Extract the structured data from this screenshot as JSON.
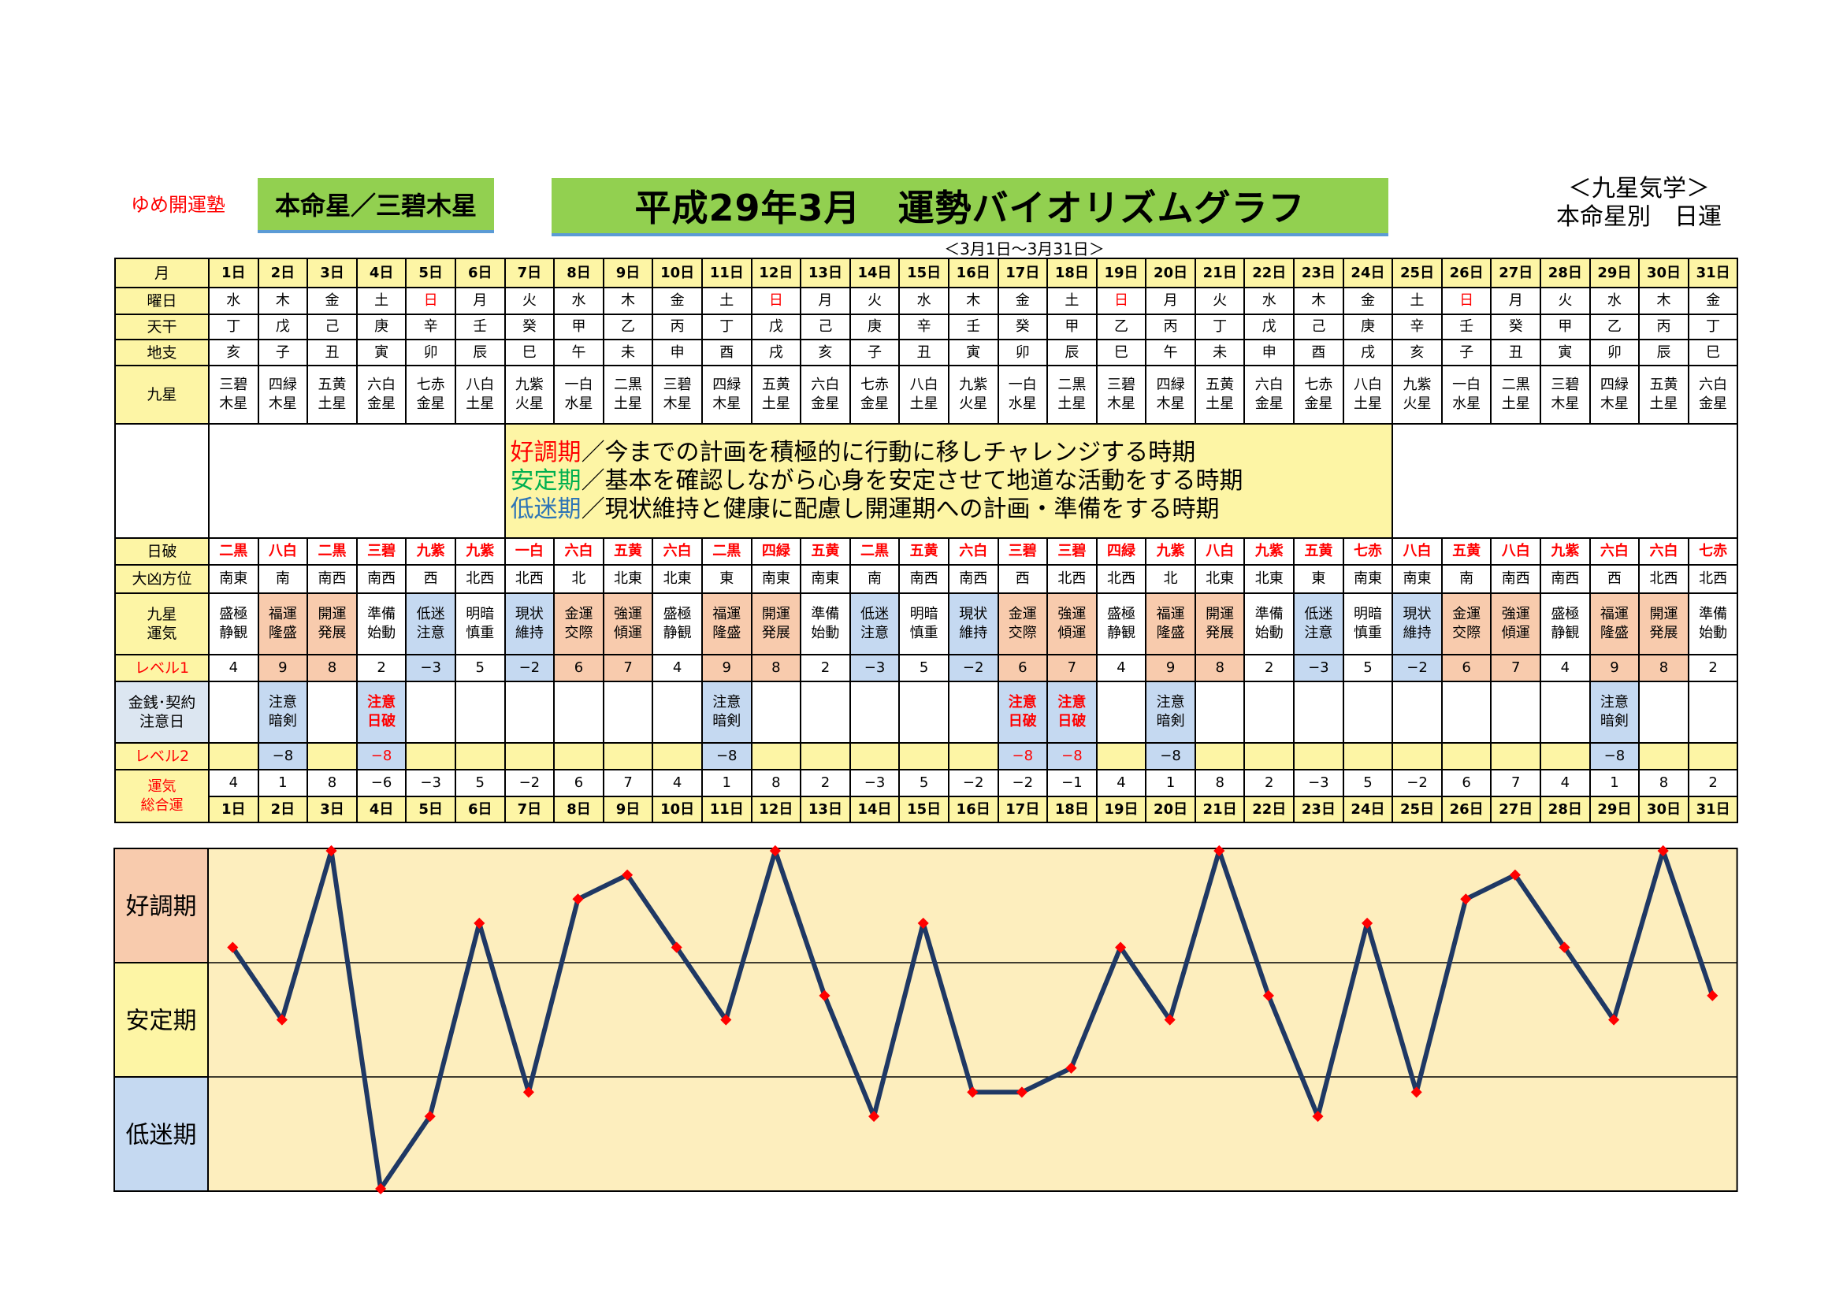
{
  "header": {
    "brand": "ゆめ開運塾",
    "honmei": "本命星／三碧木星",
    "title": "平成29年3月　運勢バイオリズムグラフ",
    "kyusei_line1": "＜九星気学＞",
    "kyusei_line2": "本命星別　日運",
    "subtitle": "＜3月1日～3月31日＞"
  },
  "row_labels": {
    "month": "月",
    "weekday": "曜日",
    "tenkan": "天干",
    "chishi": "地支",
    "kyusei": "九星",
    "nippa": "日破",
    "daikyo": "大凶方位",
    "unki_a": "九星",
    "unki_b": "運気",
    "level1": "レベル1",
    "kinsen_a": "金銭･契約",
    "kinsen_b": "注意日",
    "level2": "レベル2",
    "total_a": "運気",
    "total_b": "総合運"
  },
  "legend": {
    "good_label": "好調期",
    "good_text": "／今までの計画を積極的に行動に移しチャレンジする時期",
    "stable_label": "安定期",
    "stable_text": "／基本を確認しながら心身を安定させて地道な活動をする時期",
    "low_label": "低迷期",
    "low_text": "／現状維持と健康に配慮し開運期への計画・準備をする時期"
  },
  "days": [
    {
      "d": "1日",
      "w": "水",
      "t": "丁",
      "c": "亥",
      "k1": "三碧",
      "k2": "木星",
      "np": "二黒",
      "dk": "南東",
      "u1": "盛極",
      "u2": "静観",
      "l1": "4",
      "n1": "",
      "n2": "",
      "l2": "",
      "tot": "4"
    },
    {
      "d": "2日",
      "w": "木",
      "t": "戊",
      "c": "子",
      "k1": "四緑",
      "k2": "木星",
      "np": "八白",
      "dk": "南",
      "u1": "福運",
      "u2": "隆盛",
      "l1": "9",
      "n1": "注意",
      "n2": "暗剣",
      "l2": "−8",
      "tot": "1"
    },
    {
      "d": "3日",
      "w": "金",
      "t": "己",
      "c": "丑",
      "k1": "五黄",
      "k2": "土星",
      "np": "二黒",
      "dk": "南西",
      "u1": "開運",
      "u2": "発展",
      "l1": "8",
      "n1": "",
      "n2": "",
      "l2": "",
      "tot": "8"
    },
    {
      "d": "4日",
      "w": "土",
      "t": "庚",
      "c": "寅",
      "k1": "六白",
      "k2": "金星",
      "np": "三碧",
      "dk": "南西",
      "u1": "準備",
      "u2": "始動",
      "l1": "2",
      "n1": "注意",
      "n2": "日破",
      "l2": "−8",
      "tot": "−6"
    },
    {
      "d": "5日",
      "w": "日",
      "t": "辛",
      "c": "卯",
      "k1": "七赤",
      "k2": "金星",
      "np": "九紫",
      "dk": "西",
      "u1": "低迷",
      "u2": "注意",
      "l1": "−3",
      "n1": "",
      "n2": "",
      "l2": "",
      "tot": "−3"
    },
    {
      "d": "6日",
      "w": "月",
      "t": "壬",
      "c": "辰",
      "k1": "八白",
      "k2": "土星",
      "np": "九紫",
      "dk": "北西",
      "u1": "明暗",
      "u2": "慎重",
      "l1": "5",
      "n1": "",
      "n2": "",
      "l2": "",
      "tot": "5"
    },
    {
      "d": "7日",
      "w": "火",
      "t": "癸",
      "c": "巳",
      "k1": "九紫",
      "k2": "火星",
      "np": "一白",
      "dk": "北西",
      "u1": "現状",
      "u2": "維持",
      "l1": "−2",
      "n1": "",
      "n2": "",
      "l2": "",
      "tot": "−2"
    },
    {
      "d": "8日",
      "w": "水",
      "t": "甲",
      "c": "午",
      "k1": "一白",
      "k2": "水星",
      "np": "六白",
      "dk": "北",
      "u1": "金運",
      "u2": "交際",
      "l1": "6",
      "n1": "",
      "n2": "",
      "l2": "",
      "tot": "6"
    },
    {
      "d": "9日",
      "w": "木",
      "t": "乙",
      "c": "未",
      "k1": "二黒",
      "k2": "土星",
      "np": "五黄",
      "dk": "北東",
      "u1": "強運",
      "u2": "傾運",
      "l1": "7",
      "n1": "",
      "n2": "",
      "l2": "",
      "tot": "7"
    },
    {
      "d": "10日",
      "w": "金",
      "t": "丙",
      "c": "申",
      "k1": "三碧",
      "k2": "木星",
      "np": "六白",
      "dk": "北東",
      "u1": "盛極",
      "u2": "静観",
      "l1": "4",
      "n1": "",
      "n2": "",
      "l2": "",
      "tot": "4"
    },
    {
      "d": "11日",
      "w": "土",
      "t": "丁",
      "c": "酉",
      "k1": "四緑",
      "k2": "木星",
      "np": "二黒",
      "dk": "東",
      "u1": "福運",
      "u2": "隆盛",
      "l1": "9",
      "n1": "注意",
      "n2": "暗剣",
      "l2": "−8",
      "tot": "1"
    },
    {
      "d": "12日",
      "w": "日",
      "t": "戊",
      "c": "戌",
      "k1": "五黄",
      "k2": "土星",
      "np": "四緑",
      "dk": "南東",
      "u1": "開運",
      "u2": "発展",
      "l1": "8",
      "n1": "",
      "n2": "",
      "l2": "",
      "tot": "8"
    },
    {
      "d": "13日",
      "w": "月",
      "t": "己",
      "c": "亥",
      "k1": "六白",
      "k2": "金星",
      "np": "五黄",
      "dk": "南東",
      "u1": "準備",
      "u2": "始動",
      "l1": "2",
      "n1": "",
      "n2": "",
      "l2": "",
      "tot": "2"
    },
    {
      "d": "14日",
      "w": "火",
      "t": "庚",
      "c": "子",
      "k1": "七赤",
      "k2": "金星",
      "np": "二黒",
      "dk": "南",
      "u1": "低迷",
      "u2": "注意",
      "l1": "−3",
      "n1": "",
      "n2": "",
      "l2": "",
      "tot": "−3"
    },
    {
      "d": "15日",
      "w": "水",
      "t": "辛",
      "c": "丑",
      "k1": "八白",
      "k2": "土星",
      "np": "五黄",
      "dk": "南西",
      "u1": "明暗",
      "u2": "慎重",
      "l1": "5",
      "n1": "",
      "n2": "",
      "l2": "",
      "tot": "5"
    },
    {
      "d": "16日",
      "w": "木",
      "t": "壬",
      "c": "寅",
      "k1": "九紫",
      "k2": "火星",
      "np": "六白",
      "dk": "南西",
      "u1": "現状",
      "u2": "維持",
      "l1": "−2",
      "n1": "",
      "n2": "",
      "l2": "",
      "tot": "−2"
    },
    {
      "d": "17日",
      "w": "金",
      "t": "癸",
      "c": "卯",
      "k1": "一白",
      "k2": "水星",
      "np": "三碧",
      "dk": "西",
      "u1": "金運",
      "u2": "交際",
      "l1": "6",
      "n1": "注意",
      "n2": "日破",
      "l2": "−8",
      "tot": "−2"
    },
    {
      "d": "18日",
      "w": "土",
      "t": "甲",
      "c": "辰",
      "k1": "二黒",
      "k2": "土星",
      "np": "三碧",
      "dk": "北西",
      "u1": "強運",
      "u2": "傾運",
      "l1": "7",
      "n1": "注意",
      "n2": "日破",
      "l2": "−8",
      "tot": "−1"
    },
    {
      "d": "19日",
      "w": "日",
      "t": "乙",
      "c": "巳",
      "k1": "三碧",
      "k2": "木星",
      "np": "四緑",
      "dk": "北西",
      "u1": "盛極",
      "u2": "静観",
      "l1": "4",
      "n1": "",
      "n2": "",
      "l2": "",
      "tot": "4"
    },
    {
      "d": "20日",
      "w": "月",
      "t": "丙",
      "c": "午",
      "k1": "四緑",
      "k2": "木星",
      "np": "九紫",
      "dk": "北",
      "u1": "福運",
      "u2": "隆盛",
      "l1": "9",
      "n1": "注意",
      "n2": "暗剣",
      "l2": "−8",
      "tot": "1"
    },
    {
      "d": "21日",
      "w": "火",
      "t": "丁",
      "c": "未",
      "k1": "五黄",
      "k2": "土星",
      "np": "八白",
      "dk": "北東",
      "u1": "開運",
      "u2": "発展",
      "l1": "8",
      "n1": "",
      "n2": "",
      "l2": "",
      "tot": "8"
    },
    {
      "d": "22日",
      "w": "水",
      "t": "戊",
      "c": "申",
      "k1": "六白",
      "k2": "金星",
      "np": "九紫",
      "dk": "北東",
      "u1": "準備",
      "u2": "始動",
      "l1": "2",
      "n1": "",
      "n2": "",
      "l2": "",
      "tot": "2"
    },
    {
      "d": "23日",
      "w": "木",
      "t": "己",
      "c": "酉",
      "k1": "七赤",
      "k2": "金星",
      "np": "五黄",
      "dk": "東",
      "u1": "低迷",
      "u2": "注意",
      "l1": "−3",
      "n1": "",
      "n2": "",
      "l2": "",
      "tot": "−3"
    },
    {
      "d": "24日",
      "w": "金",
      "t": "庚",
      "c": "戌",
      "k1": "八白",
      "k2": "土星",
      "np": "七赤",
      "dk": "南東",
      "u1": "明暗",
      "u2": "慎重",
      "l1": "5",
      "n1": "",
      "n2": "",
      "l2": "",
      "tot": "5"
    },
    {
      "d": "25日",
      "w": "土",
      "t": "辛",
      "c": "亥",
      "k1": "九紫",
      "k2": "火星",
      "np": "八白",
      "dk": "南東",
      "u1": "現状",
      "u2": "維持",
      "l1": "−2",
      "n1": "",
      "n2": "",
      "l2": "",
      "tot": "−2"
    },
    {
      "d": "26日",
      "w": "日",
      "t": "壬",
      "c": "子",
      "k1": "一白",
      "k2": "水星",
      "np": "五黄",
      "dk": "南",
      "u1": "金運",
      "u2": "交際",
      "l1": "6",
      "n1": "",
      "n2": "",
      "l2": "",
      "tot": "6"
    },
    {
      "d": "27日",
      "w": "月",
      "t": "癸",
      "c": "丑",
      "k1": "二黒",
      "k2": "土星",
      "np": "八白",
      "dk": "南西",
      "u1": "強運",
      "u2": "傾運",
      "l1": "7",
      "n1": "",
      "n2": "",
      "l2": "",
      "tot": "7"
    },
    {
      "d": "28日",
      "w": "火",
      "t": "甲",
      "c": "寅",
      "k1": "三碧",
      "k2": "木星",
      "np": "九紫",
      "dk": "南西",
      "u1": "盛極",
      "u2": "静観",
      "l1": "4",
      "n1": "",
      "n2": "",
      "l2": "",
      "tot": "4"
    },
    {
      "d": "29日",
      "w": "水",
      "t": "乙",
      "c": "卯",
      "k1": "四緑",
      "k2": "木星",
      "np": "六白",
      "dk": "西",
      "u1": "福運",
      "u2": "隆盛",
      "l1": "9",
      "n1": "注意",
      "n2": "暗剣",
      "l2": "−8",
      "tot": "1"
    },
    {
      "d": "30日",
      "w": "木",
      "t": "丙",
      "c": "辰",
      "k1": "五黄",
      "k2": "土星",
      "np": "六白",
      "dk": "北西",
      "u1": "開運",
      "u2": "発展",
      "l1": "8",
      "n1": "",
      "n2": "",
      "l2": "",
      "tot": "8"
    },
    {
      "d": "31日",
      "w": "金",
      "t": "丁",
      "c": "巳",
      "k1": "六白",
      "k2": "金星",
      "np": "七赤",
      "dk": "北西",
      "u1": "準備",
      "u2": "始動",
      "l1": "2",
      "n1": "",
      "n2": "",
      "l2": "",
      "tot": "2"
    }
  ],
  "colors": {
    "header_yellow": "#fdf5a5",
    "good": "#f8cbad",
    "low": "#c5d9f1",
    "stable_label_bg": "#fdf5a5",
    "chart_bg": "#fdeebe",
    "line": "#1f3864",
    "marker": "#ff0000",
    "title_green": "#92d050"
  },
  "chart_data": {
    "type": "line",
    "categories": [
      "1日",
      "2日",
      "3日",
      "4日",
      "5日",
      "6日",
      "7日",
      "8日",
      "9日",
      "10日",
      "11日",
      "12日",
      "13日",
      "14日",
      "15日",
      "16日",
      "17日",
      "18日",
      "19日",
      "20日",
      "21日",
      "22日",
      "23日",
      "24日",
      "25日",
      "26日",
      "27日",
      "28日",
      "29日",
      "30日",
      "31日"
    ],
    "series": [
      {
        "values": [
          4,
          1,
          8,
          -6,
          -3,
          5,
          -2,
          6,
          7,
          4,
          1,
          8,
          2,
          -3,
          5,
          -2,
          -2,
          -1,
          4,
          1,
          8,
          2,
          -3,
          5,
          -2,
          6,
          7,
          4,
          1,
          8,
          2
        ]
      }
    ],
    "bands": [
      "好調期",
      "安定期",
      "低迷期"
    ],
    "ylim": [
      -6,
      8
    ],
    "grid": true
  }
}
